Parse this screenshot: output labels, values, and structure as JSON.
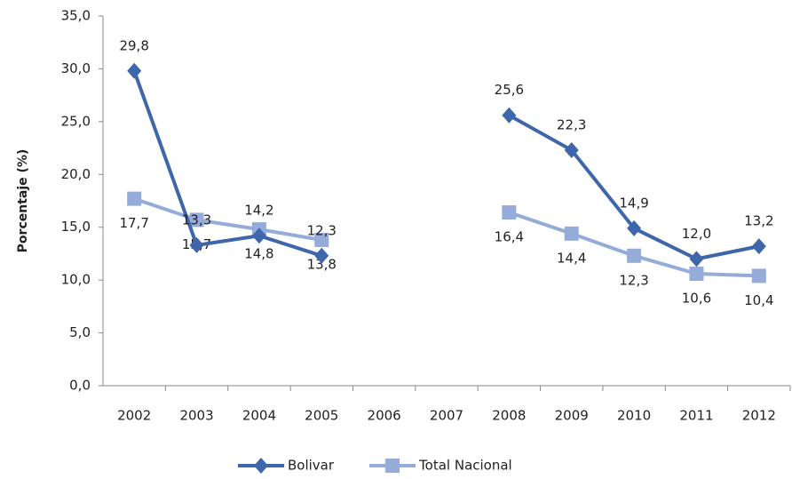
{
  "chart_data": {
    "type": "line",
    "y_label": "Porcentaje (%)",
    "categories": [
      "2002",
      "2003",
      "2004",
      "2005",
      "2006",
      "2007",
      "2008",
      "2009",
      "2010",
      "2011",
      "2012"
    ],
    "series": [
      {
        "name": "Bolivar",
        "color": "#3e67ab",
        "marker": "diamond",
        "values": [
          29.8,
          13.3,
          14.2,
          12.3,
          null,
          null,
          25.6,
          22.3,
          14.9,
          12.0,
          13.2
        ],
        "value_labels": [
          "29,8",
          "13,3",
          "14,2",
          "12,3",
          null,
          null,
          "25,6",
          "22,3",
          "14,9",
          "12,0",
          "13,2"
        ]
      },
      {
        "name": "Total Nacional",
        "color": "#95acdb",
        "marker": "square",
        "values": [
          17.7,
          15.7,
          14.8,
          13.8,
          null,
          null,
          16.4,
          14.4,
          12.3,
          10.6,
          10.4
        ],
        "value_labels": [
          "17,7",
          "15,7",
          "14,8",
          "13,8",
          null,
          null,
          "16,4",
          "14,4",
          "12,3",
          "10,6",
          "10,4"
        ]
      }
    ],
    "ylim": [
      0,
      35
    ],
    "yticks": [
      {
        "value": 0,
        "label": "0,0"
      },
      {
        "value": 5,
        "label": "5,0"
      },
      {
        "value": 10,
        "label": "10,0"
      },
      {
        "value": 15,
        "label": "15,0"
      },
      {
        "value": 20,
        "label": "20,0"
      },
      {
        "value": 25,
        "label": "25,0"
      },
      {
        "value": 30,
        "label": "30,0"
      },
      {
        "value": 35,
        "label": "35,0"
      }
    ],
    "grid": false,
    "legend": "bottom"
  }
}
